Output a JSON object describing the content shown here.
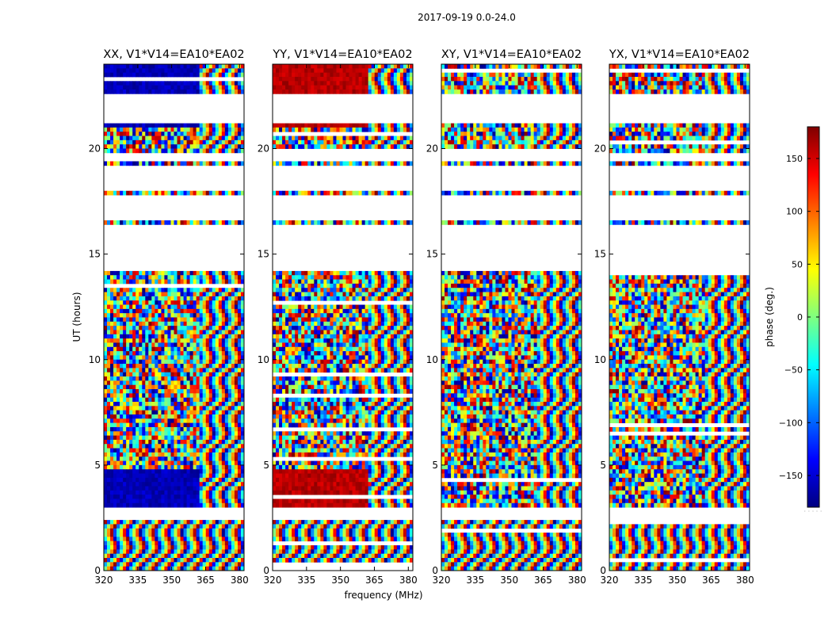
{
  "chart_data": {
    "type": "heatmap",
    "suptitle": "2017-09-19 0.0-24.0",
    "xlabel": "frequency (MHz)",
    "ylabel": "UT (hours)",
    "xlim": [
      320,
      382
    ],
    "ylim": [
      0,
      24
    ],
    "xticks": [
      320,
      335,
      350,
      365,
      380
    ],
    "yticks": [
      0,
      5,
      10,
      15,
      20
    ],
    "colorbar": {
      "label": "phase (deg.)",
      "range": [
        -180,
        180
      ],
      "ticks": [
        150,
        100,
        50,
        0,
        -50,
        -100,
        -150
      ],
      "tick_labels": [
        "150",
        "100",
        "50",
        "0",
        "−50",
        "−100",
        "−150"
      ],
      "colormap": "jet",
      "colors": [
        "#00007f",
        "#0000ff",
        "#007fff",
        "#00ffff",
        "#7fff7f",
        "#ffff00",
        "#ff7f00",
        "#ff0000",
        "#7f0000"
      ]
    },
    "gaps_ut_hours": [
      [
        2.45,
        3.0
      ],
      [
        14.15,
        16.4
      ],
      [
        16.55,
        17.85
      ],
      [
        18.0,
        19.15
      ],
      [
        19.4,
        19.8
      ],
      [
        21.3,
        22.5
      ]
    ],
    "panels": [
      {
        "title": "XX, V1*V14=EA10*EA02",
        "dominant_phase_deg": -160,
        "coherent_ut_bands": [
          [
            3.0,
            4.8
          ],
          [
            21.0,
            24.0
          ]
        ],
        "coherent_freq_max_mhz": 362
      },
      {
        "title": "YY, V1*V14=EA10*EA02",
        "dominant_phase_deg": 160,
        "coherent_ut_bands": [
          [
            3.0,
            4.8
          ],
          [
            21.0,
            24.0
          ]
        ],
        "coherent_freq_max_mhz": 362
      },
      {
        "title": "XY, V1*V14=EA10*EA02",
        "dominant_phase_deg": null,
        "coherent_ut_bands": [],
        "coherent_freq_max_mhz": null
      },
      {
        "title": "YX, V1*V14=EA10*EA02",
        "dominant_phase_deg": null,
        "coherent_ut_bands": [],
        "coherent_freq_max_mhz": null
      }
    ]
  }
}
